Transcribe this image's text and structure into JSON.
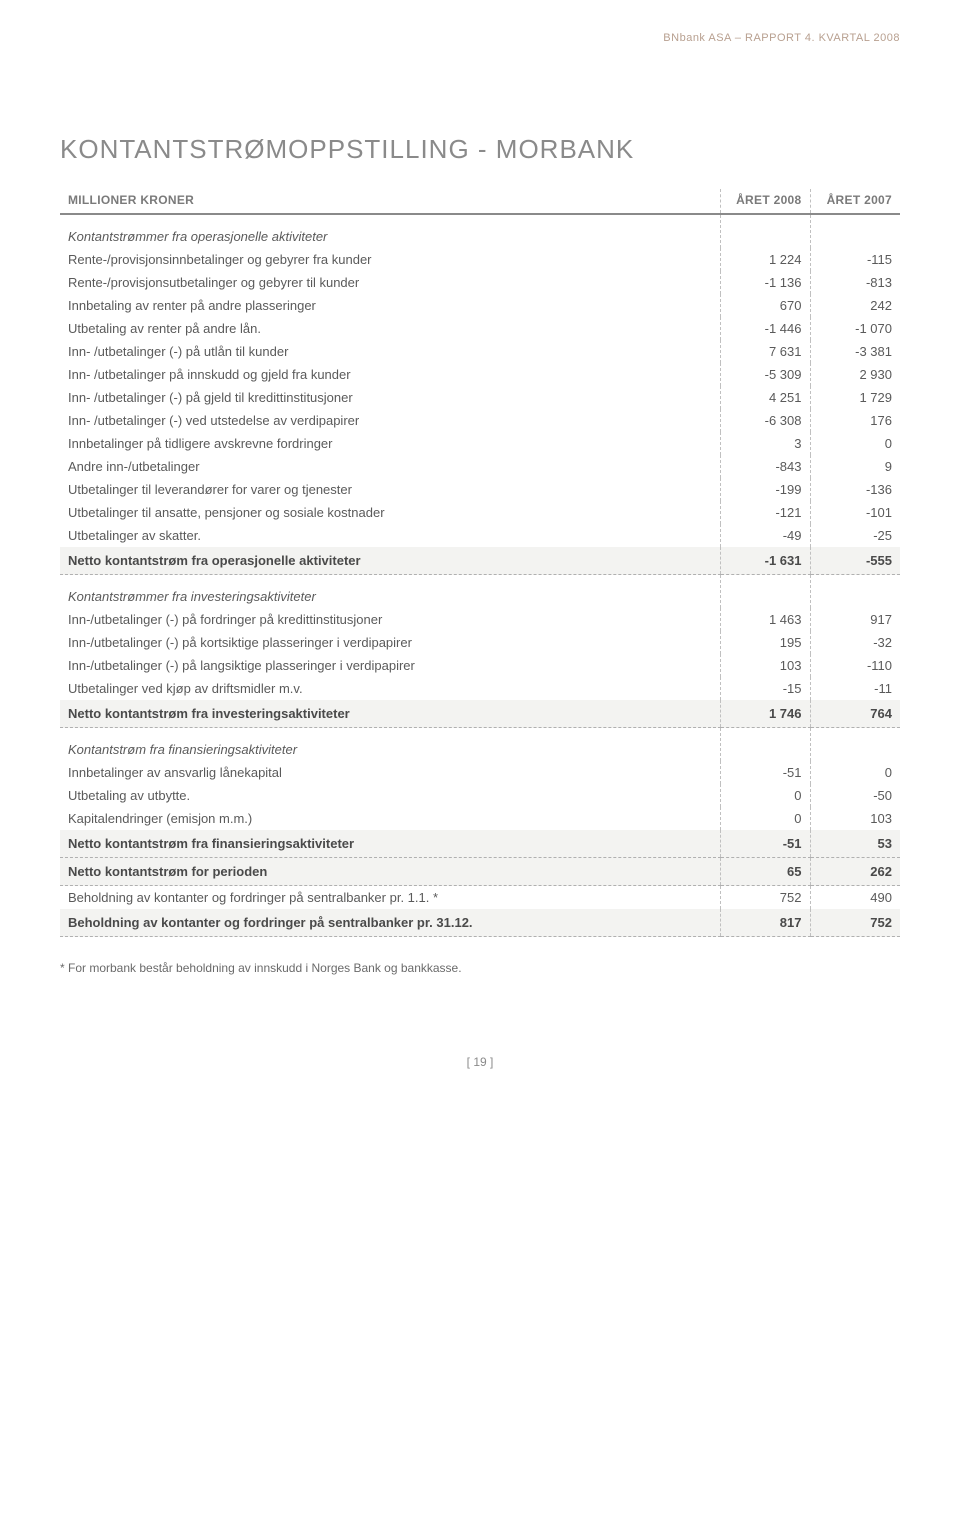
{
  "header": {
    "report_line": "BNbank ASA – RAPPORT 4. KVARTAL 2008"
  },
  "title": "KONTANTSTRØMOPPSTILLING - MORBANK",
  "table": {
    "columns": [
      "MILLIONER KRONER",
      "ÅRET 2008",
      "ÅRET 2007"
    ],
    "col_widths": [
      "auto",
      "90px",
      "90px"
    ],
    "header_border_color": "#8a8a8a",
    "dashed_border_color": "#c0c0c0",
    "bold_bg_color": "#f3f3f1",
    "text_color": "#5a5a5a"
  },
  "sections": [
    {
      "header": "Kontantstrømmer fra operasjonelle aktiviteter",
      "rows": [
        {
          "label": "Rente-/provisjonsinnbetalinger og gebyrer fra kunder",
          "c1": "1 224",
          "c2": "-115"
        },
        {
          "label": "Rente-/provisjonsutbetalinger og gebyrer til kunder",
          "c1": "-1 136",
          "c2": "-813"
        },
        {
          "label": "Innbetaling av renter på andre plasseringer",
          "c1": "670",
          "c2": "242"
        },
        {
          "label": "Utbetaling av renter på andre lån.",
          "c1": "-1 446",
          "c2": "-1 070"
        },
        {
          "label": "Inn- /utbetalinger (-) på utlån til kunder",
          "c1": "7 631",
          "c2": "-3 381"
        },
        {
          "label": "Inn- /utbetalinger på innskudd og gjeld fra kunder",
          "c1": "-5 309",
          "c2": "2 930"
        },
        {
          "label": "Inn- /utbetalinger (-) på gjeld til kredittinstitusjoner",
          "c1": "4 251",
          "c2": "1 729"
        },
        {
          "label": "Inn- /utbetalinger (-) ved utstedelse av verdipapirer",
          "c1": "-6 308",
          "c2": "176"
        },
        {
          "label": "Innbetalinger på tidligere avskrevne fordringer",
          "c1": "3",
          "c2": "0"
        },
        {
          "label": "Andre inn-/utbetalinger",
          "c1": "-843",
          "c2": "9"
        },
        {
          "label": "Utbetalinger til leverandører for varer og tjenester",
          "c1": "-199",
          "c2": "-136"
        },
        {
          "label": "Utbetalinger til ansatte, pensjoner og sosiale kostnader",
          "c1": "-121",
          "c2": "-101"
        },
        {
          "label": "Utbetalinger av skatter.",
          "c1": "-49",
          "c2": "-25"
        }
      ],
      "totals": [
        {
          "label": "Netto kontantstrøm fra operasjonelle aktiviteter",
          "c1": "-1 631",
          "c2": "-555"
        }
      ]
    },
    {
      "header": "Kontantstrømmer fra investeringsaktiviteter",
      "rows": [
        {
          "label": "Inn-/utbetalinger (-) på fordringer på kredittinstitusjoner",
          "c1": "1 463",
          "c2": "917"
        },
        {
          "label": "Inn-/utbetalinger (-) på kortsiktige plasseringer i verdipapirer",
          "c1": "195",
          "c2": "-32"
        },
        {
          "label": "Inn-/utbetalinger (-) på langsiktige plasseringer i verdipapirer",
          "c1": "103",
          "c2": "-110"
        },
        {
          "label": "Utbetalinger ved kjøp av driftsmidler m.v.",
          "c1": "-15",
          "c2": "-11"
        }
      ],
      "totals": [
        {
          "label": "Netto kontantstrøm fra investeringsaktiviteter",
          "c1": "1 746",
          "c2": "764"
        }
      ]
    },
    {
      "header": "Kontantstrøm fra finansieringsaktiviteter",
      "rows": [
        {
          "label": "Innbetalinger av ansvarlig lånekapital",
          "c1": "-51",
          "c2": "0"
        },
        {
          "label": "Utbetaling av utbytte.",
          "c1": "0",
          "c2": "-50"
        },
        {
          "label": "Kapitalendringer (emisjon m.m.)",
          "c1": "0",
          "c2": "103"
        }
      ],
      "totals": [
        {
          "label": "Netto kontantstrøm fra finansieringsaktiviteter",
          "c1": "-51",
          "c2": "53"
        },
        {
          "label": "Netto kontantstrøm for perioden",
          "c1": "65",
          "c2": "262"
        }
      ],
      "trailing_rows": [
        {
          "label": "Beholdning av kontanter og fordringer på sentralbanker pr. 1.1. *",
          "c1": "752",
          "c2": "490"
        }
      ],
      "trailing_totals": [
        {
          "label": "Beholdning av kontanter og fordringer på sentralbanker pr. 31.12.",
          "c1": "817",
          "c2": "752"
        }
      ]
    }
  ],
  "footnote": "* For morbank består beholdning av innskudd i Norges Bank og bankkasse.",
  "page_number": "[ 19 ]"
}
